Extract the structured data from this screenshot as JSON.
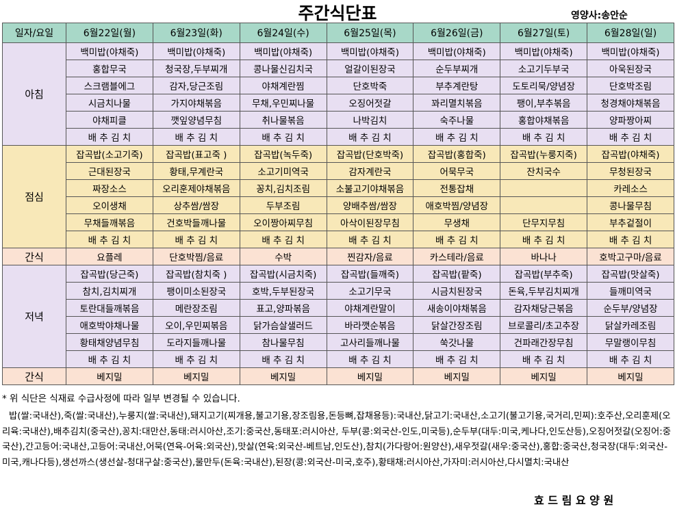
{
  "header": {
    "title": "주간식단표",
    "dietitian": "영양사:송안순"
  },
  "table": {
    "columns": [
      "일자/요일",
      "6월22일(월)",
      "6월23일(화)",
      "6월24일(수)",
      "6월25일(목)",
      "6월26일(금)",
      "6월27일(토)",
      "6월28일(일)"
    ],
    "sections": [
      {
        "label": "아침",
        "rows": [
          [
            "백미밥(야채죽)",
            "백미밥(야채죽)",
            "백미밥(야채죽)",
            "백미밥(야채죽)",
            "백미밥(야채죽)",
            "백미밥(야채죽)",
            "백미밥(야채죽)"
          ],
          [
            "홍합무국",
            "청국장,두부찌개",
            "콩나물신김치국",
            "얼갈이된장국",
            "순두부찌개",
            "소고기두부국",
            "아욱된장국"
          ],
          [
            "스크램블에그",
            "감자,당근조림",
            "야채계란찜",
            "단호박죽",
            "부추계란탕",
            "도토리묵/양념장",
            "단호박조림"
          ],
          [
            "시금치나물",
            "가지야채볶음",
            "무채,우민찌나물",
            "오징어젓갈",
            "꽈리멸치볶음",
            "팽이,부추볶음",
            "청경채야채볶음"
          ],
          [
            "야채피클",
            "깻잎양념무침",
            "취나물볶음",
            "나박김치",
            "숙주나물",
            "홍합야채볶음",
            "양파짱아찌"
          ],
          [
            "배 추 김 치",
            "배 추 김 치",
            "배 추 김 치",
            "배 추 김 치",
            "배 추 김 치",
            "배 추 김 치",
            "배 추 김 치"
          ]
        ]
      },
      {
        "label": "점심",
        "rows": [
          [
            "잡곡밥(소고기죽)",
            "잡곡밥(표고죽 )",
            "잡곡밥(녹두죽)",
            "잡곡밥(단호박죽)",
            "잡곡밥(홍합죽)",
            "잡곡밥(누룽지죽)",
            "잡곡밥(야채죽)"
          ],
          [
            "근대된장국",
            "황태,무계란국",
            "소고기미역국",
            "감자계란국",
            "어묵무국",
            "잔치국수",
            "무청된장국"
          ],
          [
            "짜장소스",
            "오리훈제야채볶음",
            "꽁치,김치조림",
            "소불고기야채볶음",
            "전통잡채",
            null,
            "카레소스"
          ],
          [
            "오이생채",
            "상추쌈/쌈장",
            "두부조림",
            "양배추쌈/쌈장",
            "애호박찜/양념장",
            null,
            "콩나물무침"
          ],
          [
            "무채들깨볶음",
            "건호박들깨나물",
            "오이짱아찌무침",
            "아삭이된장무침",
            "무생채",
            "단무지무침",
            "부추겉절이"
          ],
          [
            "배 추 김 치",
            "배 추 김 치",
            "배 추 김 치",
            "배 추 김 치",
            "배 추 김 치",
            "배 추 김 치",
            "배 추 김 치"
          ]
        ]
      },
      {
        "label": "간식",
        "rows": [
          [
            "요플레",
            "단호박찜/음료",
            "수박",
            "찐감자/음료",
            "카스테라/음료",
            "바나나",
            "호박고구마/음료"
          ]
        ]
      },
      {
        "label": "저녁",
        "rows": [
          [
            "잡곡밥(당근죽)",
            "잡곡밥(참치죽 )",
            "잡곡밥(시금치죽)",
            "잡곡밥(들깨죽)",
            "잡곡밥(팥죽)",
            "잡곡밥(부추죽)",
            "잡곡밥(맛살죽)"
          ],
          [
            "참치,김치찌개",
            "팽이미소된장국",
            "호박,두부된장국",
            "소고기무국",
            "시금치된장국",
            "돈육,두부김치찌개",
            "들깨미역국"
          ],
          [
            "토란대들깨볶음",
            "메란장조림",
            "표고,양파볶음",
            "야채계란말이",
            "새송이야채볶음",
            "감자채당근볶음",
            "순두부/양념장"
          ],
          [
            "애호박야채나물",
            "오이,우민찌볶음",
            "닭가슴살샐러드",
            "바라깻순볶음",
            "닭살간장조림",
            "브로콜리/초고추장",
            "닭살카레조림"
          ],
          [
            "황태채양념무침",
            "도라지들깨나물",
            "참나물무침",
            "고사리들깨나물",
            "쑥갓나물",
            "건파래간장무침",
            "무말랭이무침"
          ],
          [
            "배 추 김 치",
            "배 추 김 치",
            "배 추 김 치",
            "배 추 김 치",
            "배 추 김 치",
            "배 추 김 치",
            "배 추 김 치"
          ]
        ]
      },
      {
        "label": "간식",
        "rows": [
          [
            "베지밀",
            "베지밀",
            "베지밀",
            "베지밀",
            "베지밀",
            "베지밀",
            "베지밀"
          ]
        ]
      }
    ]
  },
  "notes": {
    "change": "* 위 식단은 식재료 수급사정에 따라 일부 변경될 수 있습니다.",
    "origin": "밥(쌀:국내산),죽(쌀:국내산),누룽지(쌀:국내산),돼지고기(찌개용,불고기용,장조림용,돈등뼈,잡채용등):국내산,닭고기:국내산,소고기(불고기용,국거리,민찌):호주산,오리훈제(오리육:국내산),배추김치(중국산),꽁치:대만산,동태:러시아산,조기:중국산,동태포:러시아산, 두부(콩:외국산-인도,미국등),순두부(대두:미국,케나다,인도산등),오징어젓갈(오징어:중국산),간고등어:국내산,고등어:국내산,어묵(연육-어육:외국산),맛살(연육:외국산-베트남,인도산),참치(가다랑어:원양산),새우젓갈(새우:중국산),홍합:중국산,청국장(대두:외국산-미국,캐나다등),생선까스(생선살-청대구살:중국산),물만두(돈육:국내산),된장(콩:외국산-미국,호주),황태채:러시아산,가자미:러시아산,다시멸치:국내산"
  },
  "footer": {
    "org": "효 드 림 요 양 원"
  }
}
